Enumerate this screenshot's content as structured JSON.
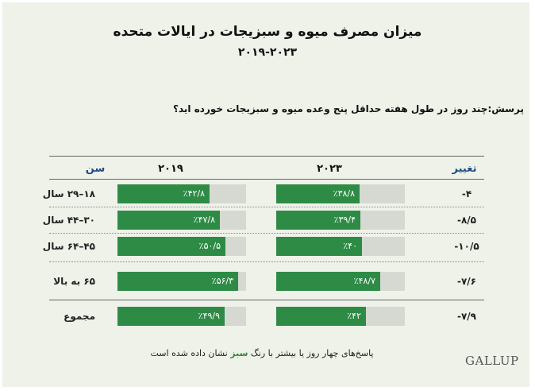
{
  "title": "میزان مصرف میوه و سبزیجات در ایالات متحده",
  "subtitle": "۲۰۱۹-۲۰۲۳",
  "question": "پرسش:چند روز در طول هفته حداقل پنج وعده میوه و سبزیجات خورده اید؟",
  "headers": {
    "age": "سن",
    "y2019": "۲۰۱۹",
    "y2023": "۲۰۲۳",
    "change": "تغییر"
  },
  "colors": {
    "bar": "#2e8b46",
    "track": "#d6d9d2",
    "header": "#1b4b8a"
  },
  "chart_data": {
    "type": "bar",
    "orientation": "horizontal",
    "unit": "percent",
    "categories": [
      "۱۸–۲۹ سال",
      "۳۰–۴۴ سال",
      "۴۵–۶۴ سال",
      "۶۵ به بالا",
      "مجموع"
    ],
    "series": [
      {
        "name": "۲۰۱۹",
        "values": [
          42.8,
          47.8,
          50.5,
          56.3,
          49.9
        ],
        "labels": [
          "٪۴۲/۸",
          "٪۴۷/۸",
          "٪۵۰/۵",
          "٪۵۶/۳",
          "٪۴۹/۹"
        ]
      },
      {
        "name": "۲۰۲۳",
        "values": [
          38.8,
          39.4,
          40,
          48.7,
          42
        ],
        "labels": [
          "٪۳۸/۸",
          "٪۳۹/۴",
          "٪۴۰",
          "٪۴۸/۷",
          "٪۴۲"
        ]
      }
    ],
    "change": [
      "-۴",
      "-۸/۵",
      "-۱۰/۵",
      "-۷/۶",
      "-۷/۹"
    ],
    "change_values": [
      -4,
      -8.5,
      -10.5,
      -7.6,
      -7.9
    ],
    "xlim": [
      0,
      60
    ]
  },
  "footnote": {
    "before": "پاسخ‌های چهار روز یا بیشتر با رنگ",
    "highlight": "سبز",
    "after": "نشان داده شده است"
  },
  "logo": "GALLUP"
}
